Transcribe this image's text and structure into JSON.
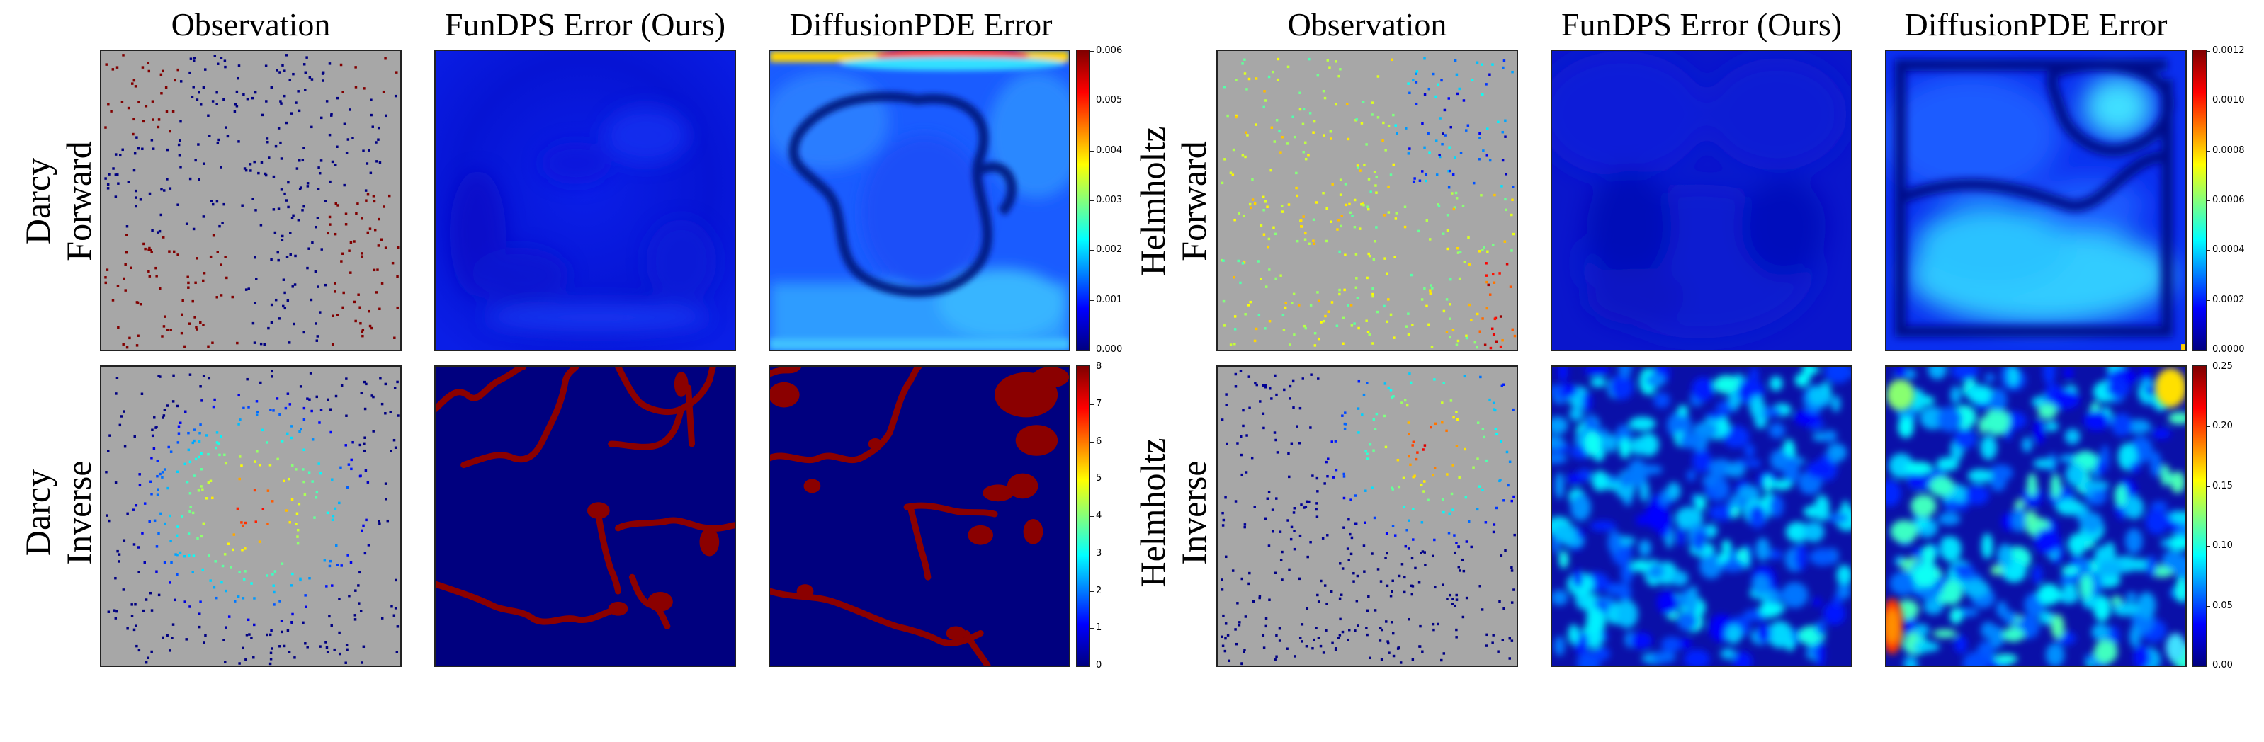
{
  "columns": {
    "left": [
      "Observation",
      "FunDPS Error (Ours)",
      "DiffusionPDE Error"
    ],
    "right": [
      "Observation",
      "FunDPS Error (Ours)",
      "DiffusionPDE Error"
    ]
  },
  "rows": {
    "darcy_forward": "Darcy\nForward",
    "darcy_inverse": "Darcy\nInverse",
    "helmholtz_forward": "Helmholtz\nForward",
    "helmholtz_inverse": "Helmholtz\nInverse"
  },
  "colorbars": {
    "darcy_forward": [
      "0.006",
      "0.005",
      "0.004",
      "0.003",
      "0.002",
      "0.001",
      "0.000"
    ],
    "darcy_inverse": [
      "8",
      "7",
      "6",
      "5",
      "4",
      "3",
      "2",
      "1",
      "0"
    ],
    "helmholtz_forward": [
      "0.0012",
      "0.0010",
      "0.0008",
      "0.0006",
      "0.0004",
      "0.0002",
      "0.0000"
    ],
    "helmholtz_inverse": [
      "0.25",
      "0.20",
      "0.15",
      "0.10",
      "0.05",
      "0.00"
    ]
  },
  "colors": {
    "jet_low": "#00007f",
    "jet_blue": "#0000ff",
    "jet_cyan": "#00ffff",
    "jet_yellow": "#ffff00",
    "jet_red": "#ff0000",
    "jet_high": "#7f0000",
    "observation_background": "#a7a7a7"
  }
}
